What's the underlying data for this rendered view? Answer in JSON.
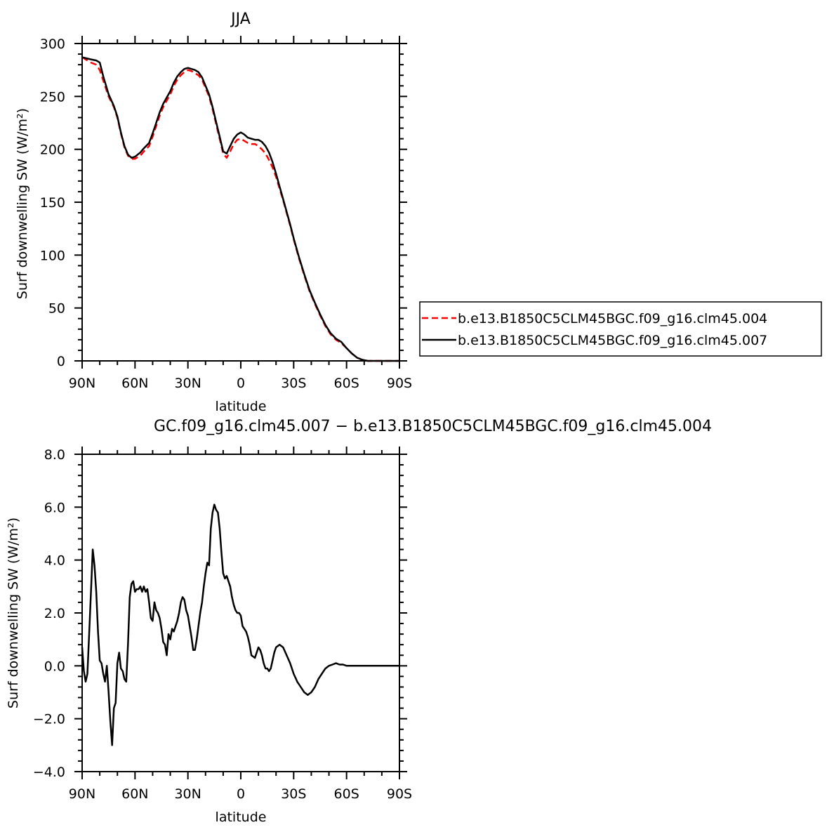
{
  "chart_data": [
    {
      "type": "line",
      "title": "JJA",
      "xlabel": "latitude",
      "ylabel": "Surf downwelling SW (W/m²)",
      "xlim": [
        90,
        -90
      ],
      "ylim": [
        0,
        300
      ],
      "x_ticks": [
        90,
        60,
        30,
        0,
        -30,
        -60,
        -90
      ],
      "x_tick_labels": [
        "90N",
        "60N",
        "30N",
        "0",
        "30S",
        "60S",
        "90S"
      ],
      "y_ticks": [
        0,
        50,
        100,
        150,
        200,
        250,
        300
      ],
      "y_tick_labels": [
        "0",
        "50",
        "100",
        "150",
        "200",
        "250",
        "300"
      ],
      "legend": "right",
      "series": [
        {
          "name": "b.e13.B1850C5CLM45BGC.f09_g16.clm45.004",
          "color": "#ff0000",
          "dash": "dashed",
          "x": [
            90,
            85,
            82,
            80,
            78,
            75,
            72,
            70,
            68,
            66,
            64,
            62,
            60,
            57,
            55,
            52,
            50,
            48,
            46,
            44,
            42,
            40,
            38,
            36,
            34,
            32,
            30,
            28,
            26,
            24,
            22,
            20,
            18,
            16,
            14,
            12,
            10,
            8,
            6,
            4,
            2,
            0,
            -2,
            -4,
            -6,
            -8,
            -10,
            -12,
            -14,
            -16,
            -18,
            -20,
            -22,
            -24,
            -26,
            -28,
            -30,
            -33,
            -36,
            -39,
            -42,
            -45,
            -48,
            -51,
            -54,
            -57,
            -60,
            -63,
            -66,
            -69,
            -72,
            -75,
            -78,
            -81,
            -84,
            -87,
            -90
          ],
          "y": [
            287,
            282,
            280,
            275,
            265,
            250,
            240,
            230,
            215,
            202,
            194,
            191,
            191,
            194,
            198,
            203,
            212,
            222,
            232,
            240,
            246,
            252,
            260,
            266,
            270,
            273,
            275,
            274,
            272,
            270,
            266,
            258,
            250,
            238,
            224,
            210,
            196,
            192,
            198,
            205,
            209,
            210,
            208,
            206,
            205,
            205,
            203,
            200,
            196,
            190,
            183,
            174,
            163,
            152,
            140,
            128,
            115,
            97,
            81,
            66,
            54,
            43,
            33,
            25,
            20,
            17,
            12,
            7,
            3,
            1,
            0,
            0,
            0,
            0,
            0,
            0,
            0
          ]
        },
        {
          "name": "b.e13.B1850C5CLM45BGC.f09_g16.clm45.007",
          "color": "#000000",
          "dash": "solid",
          "x": [
            90,
            85,
            82,
            80,
            78,
            75,
            72,
            70,
            68,
            66,
            64,
            62,
            60,
            57,
            55,
            52,
            50,
            48,
            46,
            44,
            42,
            40,
            38,
            36,
            34,
            32,
            30,
            28,
            26,
            24,
            22,
            20,
            18,
            16,
            14,
            12,
            10,
            8,
            6,
            4,
            2,
            0,
            -2,
            -4,
            -6,
            -8,
            -10,
            -12,
            -14,
            -16,
            -18,
            -20,
            -22,
            -24,
            -26,
            -28,
            -30,
            -33,
            -36,
            -39,
            -42,
            -45,
            -48,
            -51,
            -54,
            -57,
            -60,
            -63,
            -66,
            -69,
            -72,
            -75,
            -78,
            -81,
            -84,
            -87,
            -90
          ],
          "y": [
            287,
            285,
            284,
            282,
            269,
            252,
            241,
            231,
            216,
            203,
            195,
            192,
            193,
            197,
            201,
            206,
            215,
            225,
            235,
            243,
            249,
            255,
            263,
            269,
            273,
            276,
            277,
            276,
            275,
            273,
            268,
            260,
            252,
            240,
            226,
            212,
            198,
            196,
            203,
            210,
            214,
            216,
            214,
            211,
            210,
            209,
            209,
            207,
            203,
            197,
            188,
            177,
            165,
            153,
            141,
            129,
            116,
            98,
            82,
            67,
            55,
            44,
            34,
            26,
            21,
            18,
            12,
            7,
            3,
            1,
            0,
            0,
            0,
            0,
            0,
            0,
            0
          ]
        }
      ]
    },
    {
      "type": "line",
      "title": "GC.f09_g16.clm45.007 − b.e13.B1850C5CLM45BGC.f09_g16.clm45.004",
      "xlabel": "latitude",
      "ylabel": "Surf downwelling SW (W/m²)",
      "xlim": [
        90,
        -90
      ],
      "ylim": [
        -4.0,
        8.0
      ],
      "x_ticks": [
        90,
        60,
        30,
        0,
        -30,
        -60,
        -90
      ],
      "x_tick_labels": [
        "90N",
        "60N",
        "30N",
        "0",
        "30S",
        "60S",
        "90S"
      ],
      "y_ticks": [
        -4,
        -2,
        0,
        2,
        4,
        6,
        8
      ],
      "y_tick_labels": [
        "−4.0",
        "−2.0",
        "0.0",
        "2.0",
        "4.0",
        "6.0",
        "8.0"
      ],
      "series": [
        {
          "color": "#000000",
          "dash": "solid",
          "x": [
            90,
            89,
            88,
            87,
            86,
            85,
            84,
            83,
            82,
            81,
            80,
            79,
            78,
            77,
            76,
            75,
            74,
            73,
            72,
            71,
            70,
            69,
            68,
            67,
            66,
            65,
            64,
            63,
            62,
            61,
            60,
            59,
            58,
            57,
            56,
            55,
            54,
            53,
            52,
            51,
            50,
            49,
            48,
            47,
            46,
            45,
            44,
            43,
            42,
            41,
            40,
            39,
            38,
            37,
            36,
            35,
            34,
            33,
            32,
            31,
            30,
            29,
            28,
            27,
            26,
            25,
            24,
            23,
            22,
            21,
            20,
            19,
            18,
            17,
            16,
            15,
            14,
            13,
            12,
            11,
            10,
            9,
            8,
            7,
            6,
            5,
            4,
            3,
            2,
            1,
            0,
            -1,
            -2,
            -3,
            -4,
            -5,
            -6,
            -7,
            -8,
            -9,
            -10,
            -11,
            -12,
            -13,
            -14,
            -15,
            -16,
            -17,
            -18,
            -19,
            -20,
            -22,
            -24,
            -26,
            -28,
            -30,
            -32,
            -34,
            -36,
            -38,
            -40,
            -42,
            -44,
            -46,
            -48,
            -50,
            -52,
            -54,
            -56,
            -58,
            -60,
            -62,
            -64,
            -66,
            -68,
            -70,
            -72,
            -75,
            -80,
            -85,
            -90
          ],
          "y": [
            0.7,
            -0.2,
            -0.6,
            -0.3,
            1.2,
            2.8,
            4.4,
            3.8,
            2.8,
            1.3,
            0.2,
            0.1,
            -0.3,
            -0.6,
            0.0,
            -1.0,
            -2.1,
            -3.0,
            -1.6,
            -1.4,
            0.1,
            0.5,
            -0.1,
            -0.2,
            -0.5,
            -0.6,
            0.8,
            2.6,
            3.1,
            3.2,
            2.8,
            2.9,
            2.9,
            3.0,
            2.8,
            3.0,
            2.8,
            2.9,
            2.4,
            1.8,
            1.7,
            2.4,
            2.1,
            2.0,
            1.8,
            1.4,
            0.9,
            0.8,
            0.4,
            1.2,
            1.0,
            1.4,
            1.3,
            1.5,
            1.7,
            2.0,
            2.4,
            2.6,
            2.5,
            2.1,
            1.9,
            1.5,
            1.1,
            0.6,
            0.6,
            1.0,
            1.5,
            2.0,
            2.4,
            3.0,
            3.5,
            3.9,
            3.8,
            5.2,
            5.8,
            6.1,
            5.9,
            5.8,
            5.2,
            4.3,
            3.5,
            3.3,
            3.4,
            3.2,
            3.0,
            2.6,
            2.3,
            2.1,
            2.0,
            2.0,
            1.9,
            1.5,
            1.4,
            1.3,
            1.1,
            0.8,
            0.4,
            0.35,
            0.3,
            0.5,
            0.7,
            0.6,
            0.4,
            0.1,
            -0.1,
            -0.1,
            -0.2,
            -0.1,
            0.2,
            0.5,
            0.7,
            0.8,
            0.7,
            0.4,
            0.1,
            -0.3,
            -0.6,
            -0.8,
            -1.0,
            -1.1,
            -1.0,
            -0.8,
            -0.5,
            -0.3,
            -0.1,
            0.0,
            0.05,
            0.1,
            0.05,
            0.05,
            0.0,
            0.0,
            0.0,
            0.0,
            0.0,
            0.0,
            0.0,
            0.0,
            0.0,
            0.0,
            0.0
          ]
        }
      ]
    }
  ]
}
